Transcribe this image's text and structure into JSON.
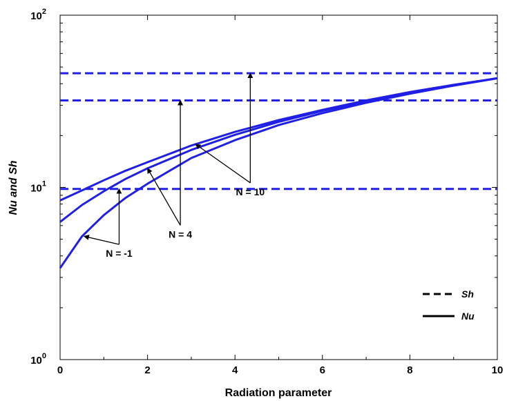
{
  "chart_data": {
    "type": "line",
    "xlabel": "Radiation parameter",
    "ylabel": "Nu and Sh",
    "xlim": [
      0,
      10
    ],
    "ylim": [
      1,
      100
    ],
    "yscale": "log",
    "grid": false,
    "legend_position": "bottom-right",
    "line_color": "#1f1fe6",
    "x_ticks": [
      "0",
      "2",
      "4",
      "6",
      "8",
      "10"
    ],
    "y_ticks": [
      {
        "base": "10",
        "exp": "0"
      },
      {
        "base": "10",
        "exp": "1"
      },
      {
        "base": "10",
        "exp": "2"
      }
    ],
    "legend": [
      {
        "label": "Sh",
        "style": "dashed"
      },
      {
        "label": "Nu",
        "style": "solid"
      }
    ],
    "series": [
      {
        "kind": "Sh",
        "N": "-1",
        "style": "dashed",
        "x": [
          0,
          10
        ],
        "y": [
          9.8,
          9.8
        ]
      },
      {
        "kind": "Sh",
        "N": "4",
        "style": "dashed",
        "x": [
          0,
          10
        ],
        "y": [
          32,
          32
        ]
      },
      {
        "kind": "Sh",
        "N": "10",
        "style": "dashed",
        "x": [
          0,
          10
        ],
        "y": [
          46,
          46
        ]
      },
      {
        "kind": "Nu",
        "N": "-1",
        "style": "solid",
        "x": [
          0,
          0.5,
          1,
          1.5,
          2,
          3,
          4,
          5,
          6,
          7,
          8,
          9,
          10
        ],
        "y": [
          3.4,
          5.2,
          6.9,
          8.7,
          10.5,
          14.8,
          18.8,
          23,
          27,
          31,
          35,
          39,
          43
        ]
      },
      {
        "kind": "Nu",
        "N": "4",
        "style": "solid",
        "x": [
          0,
          0.5,
          1,
          1.5,
          2,
          3,
          4,
          5,
          6,
          7,
          8,
          9,
          10
        ],
        "y": [
          6.3,
          7.9,
          9.5,
          11.2,
          12.9,
          16.5,
          20.2,
          24,
          27.8,
          31.6,
          35.4,
          39,
          43
        ]
      },
      {
        "kind": "Nu",
        "N": "10",
        "style": "solid",
        "x": [
          0,
          0.5,
          1,
          1.5,
          2,
          3,
          4,
          5,
          6,
          7,
          8,
          9,
          10
        ],
        "y": [
          8.4,
          9.6,
          11,
          12.5,
          14,
          17.5,
          21,
          24.6,
          28.2,
          32,
          35.8,
          39.4,
          43
        ]
      }
    ],
    "annotations": [
      {
        "text": "N = -1",
        "label_x": 1.35,
        "label_y": 3.95,
        "targets": [
          {
            "x": 0.55,
            "y": 5.2
          },
          {
            "x": 1.35,
            "y": 9.8
          }
        ]
      },
      {
        "text": "N = 4",
        "label_x": 2.75,
        "label_y": 5.1,
        "targets": [
          {
            "x": 2.0,
            "y": 12.9
          },
          {
            "x": 2.75,
            "y": 32
          }
        ]
      },
      {
        "text": "N = 10",
        "label_x": 4.35,
        "label_y": 9.0,
        "targets": [
          {
            "x": 3.1,
            "y": 17.8
          },
          {
            "x": 4.35,
            "y": 46
          }
        ]
      }
    ]
  }
}
